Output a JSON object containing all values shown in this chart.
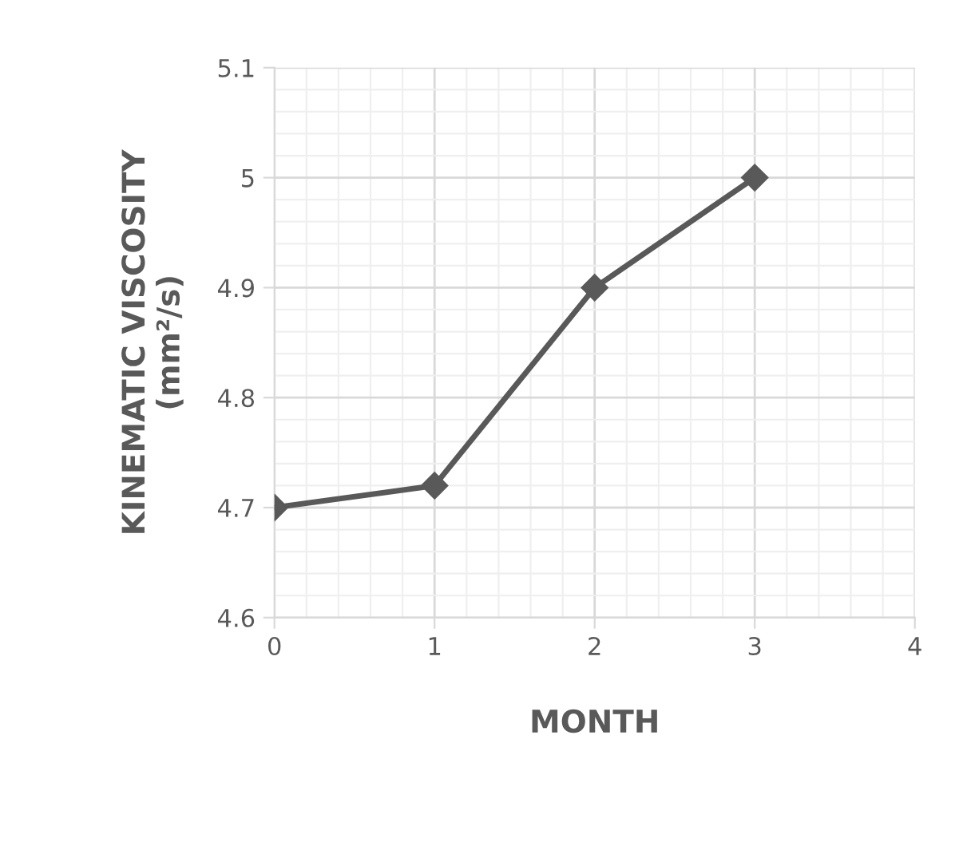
{
  "chart_data": {
    "type": "line",
    "xlabel": "MONTH",
    "ylabel": "KINEMATIC VISCOSITY\n(mm²/s)",
    "x": [
      0,
      1,
      2,
      3
    ],
    "series": [
      {
        "color": "#595959",
        "values": [
          4.7,
          4.72,
          4.9,
          5.0
        ]
      }
    ],
    "xlim": [
      0,
      4
    ],
    "xticks": [
      0,
      1,
      2,
      3,
      4
    ],
    "ylim": [
      4.6,
      5.1
    ],
    "yticks": [
      4.6,
      4.7,
      4.8,
      4.9,
      5,
      5.1
    ],
    "grid": true,
    "marker": "diamond",
    "line_style": "solid",
    "legend": false
  }
}
